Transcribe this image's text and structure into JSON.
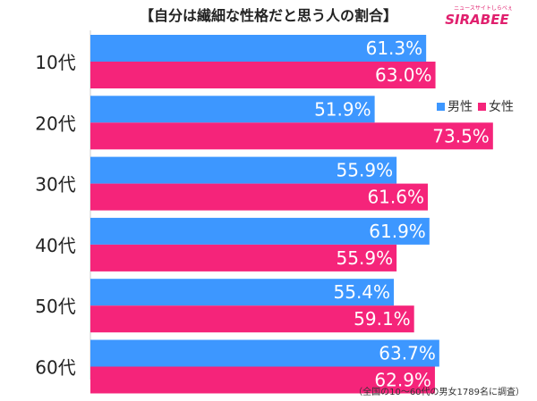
{
  "title": "【自分は繊細な性格だと思う人の割合】",
  "logo": {
    "small_text": "ニュースサイトしらべぇ",
    "brand": "SIRABEE"
  },
  "footnote": "（全国の10〜60代の男女1789名に調査）",
  "colors": {
    "male": "#3d97ff",
    "female": "#f5247a"
  },
  "chart_data": {
    "type": "bar",
    "orientation": "horizontal",
    "categories": [
      "10代",
      "20代",
      "30代",
      "40代",
      "50代",
      "60代"
    ],
    "series": [
      {
        "name": "男性",
        "values": [
          61.3,
          51.9,
          55.9,
          61.9,
          55.4,
          63.7
        ]
      },
      {
        "name": "女性",
        "values": [
          63.0,
          73.5,
          61.6,
          55.9,
          59.1,
          62.9
        ]
      }
    ],
    "value_suffix": "%",
    "legend_position": "right",
    "grid": false
  }
}
